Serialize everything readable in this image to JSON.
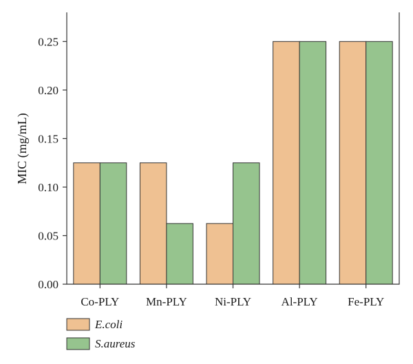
{
  "chart_data": {
    "type": "bar",
    "title": "",
    "xlabel": "",
    "ylabel": "MIC (mg/mL)",
    "categories": [
      "Co-PLY",
      "Mn-PLY",
      "Ni-PLY",
      "Al-PLY",
      "Fe-PLY"
    ],
    "series": [
      {
        "name": "E.coli",
        "values": [
          0.125,
          0.125,
          0.0625,
          0.25,
          0.25
        ],
        "color": "#EFC192"
      },
      {
        "name": "S.aureus",
        "values": [
          0.125,
          0.0625,
          0.125,
          0.25,
          0.25
        ],
        "color": "#96C48E"
      }
    ],
    "yticks": [
      "0.00",
      "0.05",
      "0.10",
      "0.15",
      "0.20",
      "0.25"
    ],
    "ylim": [
      0,
      0.28
    ],
    "grid": false,
    "legend": "bottom-left"
  }
}
